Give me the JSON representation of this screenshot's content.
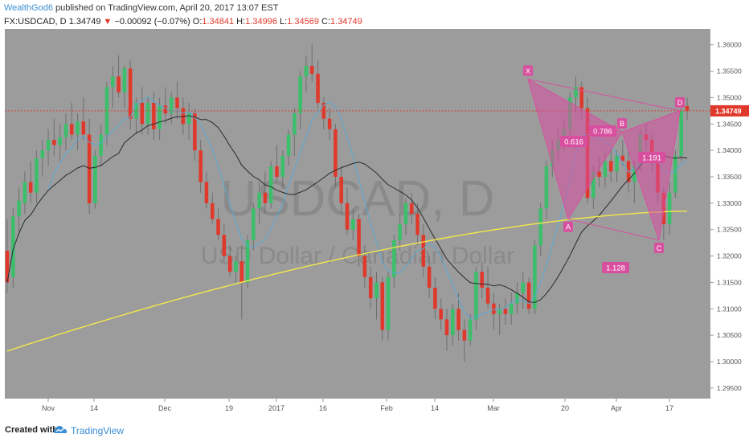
{
  "header": {
    "author": "WealthGod6",
    "published_text": " published on TradingView.com, April 20, 2017 13:07 EST",
    "symbol": "FX:USDCAD, D",
    "last": "1.34749",
    "change_arrow": "▼",
    "change": "−0.00092 (−0.07%)",
    "o_label": "O:",
    "o_value": "1.34841",
    "h_label": "H:",
    "h_value": "1.34996",
    "l_label": "L:",
    "l_value": "1.34569",
    "c_label": "C:",
    "c_value": "1.34749"
  },
  "watermark": {
    "line1": "USDCAD, D",
    "line2": "USD Dollar / Canadian Dollar"
  },
  "footer": {
    "created_with": "Created with",
    "brand": "TradingView"
  },
  "colors": {
    "background": "#9c9c9c",
    "up": "#3bbf6b",
    "down": "#e0392b",
    "ma_fast": "#5aaad6",
    "ma_slow": "#2a2a2a",
    "ma_long": "#f2e84a",
    "pattern": "#d94fa0",
    "price_line": "#e0392b",
    "price_tag": "#e0392b"
  },
  "chart_data": {
    "type": "candlestick",
    "y_ticks": [
      "1.36000",
      "1.35500",
      "1.35000",
      "1.34500",
      "1.34000",
      "1.33500",
      "1.33000",
      "1.32500",
      "1.32000",
      "1.31500",
      "1.31000",
      "1.30500",
      "1.30000",
      "1.29500"
    ],
    "ylim": [
      1.293,
      1.363
    ],
    "x_ticks": [
      "Nov",
      "14",
      "Dec",
      "19",
      "2017",
      "16",
      "Feb",
      "14",
      "Mar",
      "20",
      "Apr",
      "17"
    ],
    "last_price_label": "1.34749",
    "last_price": 1.34749,
    "harmonic_pattern": {
      "points": [
        {
          "label": "X",
          "price": 1.3535
        },
        {
          "label": "A",
          "price": 1.327
        },
        {
          "label": "B",
          "price": 1.3435
        },
        {
          "label": "C",
          "price": 1.323
        },
        {
          "label": "D",
          "price": 1.3475
        }
      ],
      "ratios": [
        "0.616",
        "0.786",
        "1.191",
        "1.128"
      ]
    },
    "series": [
      {
        "name": "",
        "type": "ohlc",
        "values": [
          [
            1.321,
            1.327,
            1.313,
            1.315
          ],
          [
            1.316,
            1.329,
            1.314,
            1.3275
          ],
          [
            1.3275,
            1.333,
            1.324,
            1.3305
          ],
          [
            1.33,
            1.336,
            1.328,
            1.334
          ],
          [
            1.334,
            1.338,
            1.33,
            1.332
          ],
          [
            1.332,
            1.34,
            1.33,
            1.3385
          ],
          [
            1.3385,
            1.342,
            1.335,
            1.34
          ],
          [
            1.34,
            1.344,
            1.337,
            1.342
          ],
          [
            1.342,
            1.346,
            1.339,
            1.341
          ],
          [
            1.341,
            1.345,
            1.338,
            1.3425
          ],
          [
            1.3425,
            1.347,
            1.34,
            1.345
          ],
          [
            1.345,
            1.349,
            1.342,
            1.343
          ],
          [
            1.343,
            1.347,
            1.34,
            1.3455
          ],
          [
            1.3455,
            1.35,
            1.342,
            1.343
          ],
          [
            1.343,
            1.346,
            1.328,
            1.33
          ],
          [
            1.33,
            1.34,
            1.329,
            1.339
          ],
          [
            1.339,
            1.345,
            1.337,
            1.343
          ],
          [
            1.343,
            1.353,
            1.341,
            1.352
          ],
          [
            1.352,
            1.356,
            1.348,
            1.354
          ],
          [
            1.354,
            1.358,
            1.35,
            1.351
          ],
          [
            1.351,
            1.356,
            1.348,
            1.3555
          ],
          [
            1.3555,
            1.357,
            1.344,
            1.346
          ],
          [
            1.346,
            1.35,
            1.343,
            1.349
          ],
          [
            1.349,
            1.352,
            1.343,
            1.345
          ],
          [
            1.345,
            1.35,
            1.343,
            1.349
          ],
          [
            1.349,
            1.351,
            1.342,
            1.344
          ],
          [
            1.344,
            1.35,
            1.342,
            1.3485
          ],
          [
            1.3485,
            1.352,
            1.345,
            1.347
          ],
          [
            1.347,
            1.351,
            1.345,
            1.35
          ],
          [
            1.35,
            1.353,
            1.346,
            1.348
          ],
          [
            1.348,
            1.35,
            1.343,
            1.345
          ],
          [
            1.345,
            1.349,
            1.342,
            1.347
          ],
          [
            1.347,
            1.348,
            1.338,
            1.34
          ],
          [
            1.34,
            1.342,
            1.332,
            1.334
          ],
          [
            1.334,
            1.336,
            1.329,
            1.33
          ],
          [
            1.33,
            1.332,
            1.326,
            1.327
          ],
          [
            1.327,
            1.329,
            1.323,
            1.324
          ],
          [
            1.324,
            1.326,
            1.319,
            1.32
          ],
          [
            1.32,
            1.322,
            1.316,
            1.317
          ],
          [
            1.317,
            1.32,
            1.315,
            1.319
          ],
          [
            1.319,
            1.322,
            1.308,
            1.315
          ],
          [
            1.315,
            1.324,
            1.314,
            1.323
          ],
          [
            1.323,
            1.33,
            1.321,
            1.329
          ],
          [
            1.329,
            1.334,
            1.326,
            1.332
          ],
          [
            1.332,
            1.336,
            1.328,
            1.33
          ],
          [
            1.33,
            1.338,
            1.329,
            1.337
          ],
          [
            1.337,
            1.341,
            1.334,
            1.335
          ],
          [
            1.335,
            1.34,
            1.333,
            1.339
          ],
          [
            1.339,
            1.344,
            1.337,
            1.343
          ],
          [
            1.343,
            1.348,
            1.339,
            1.347
          ],
          [
            1.347,
            1.355,
            1.344,
            1.354
          ],
          [
            1.354,
            1.358,
            1.351,
            1.356
          ],
          [
            1.356,
            1.36,
            1.353,
            1.3545
          ],
          [
            1.3545,
            1.357,
            1.348,
            1.349
          ],
          [
            1.349,
            1.35,
            1.344,
            1.346
          ],
          [
            1.346,
            1.348,
            1.342,
            1.344
          ],
          [
            1.344,
            1.345,
            1.333,
            1.335
          ],
          [
            1.335,
            1.337,
            1.328,
            1.33
          ],
          [
            1.33,
            1.333,
            1.324,
            1.325
          ],
          [
            1.325,
            1.329,
            1.323,
            1.327
          ],
          [
            1.327,
            1.328,
            1.318,
            1.32
          ],
          [
            1.32,
            1.322,
            1.314,
            1.316
          ],
          [
            1.316,
            1.318,
            1.31,
            1.312
          ],
          [
            1.312,
            1.317,
            1.308,
            1.315
          ],
          [
            1.315,
            1.316,
            1.304,
            1.306
          ],
          [
            1.306,
            1.317,
            1.304,
            1.316
          ],
          [
            1.316,
            1.324,
            1.314,
            1.323
          ],
          [
            1.323,
            1.328,
            1.321,
            1.326
          ],
          [
            1.326,
            1.331,
            1.324,
            1.33
          ],
          [
            1.33,
            1.332,
            1.326,
            1.328
          ],
          [
            1.328,
            1.33,
            1.322,
            1.324
          ],
          [
            1.324,
            1.326,
            1.316,
            1.318
          ],
          [
            1.318,
            1.32,
            1.312,
            1.314
          ],
          [
            1.314,
            1.316,
            1.308,
            1.31
          ],
          [
            1.31,
            1.312,
            1.306,
            1.308
          ],
          [
            1.308,
            1.31,
            1.302,
            1.305
          ],
          [
            1.305,
            1.311,
            1.303,
            1.31
          ],
          [
            1.31,
            1.313,
            1.304,
            1.306
          ],
          [
            1.306,
            1.308,
            1.3,
            1.304
          ],
          [
            1.304,
            1.309,
            1.303,
            1.308
          ],
          [
            1.308,
            1.318,
            1.306,
            1.317
          ],
          [
            1.317,
            1.319,
            1.312,
            1.314
          ],
          [
            1.314,
            1.318,
            1.31,
            1.311
          ],
          [
            1.311,
            1.313,
            1.306,
            1.309
          ],
          [
            1.309,
            1.311,
            1.305,
            1.31
          ],
          [
            1.31,
            1.312,
            1.307,
            1.309
          ],
          [
            1.309,
            1.313,
            1.307,
            1.311
          ],
          [
            1.311,
            1.315,
            1.309,
            1.313
          ],
          [
            1.313,
            1.317,
            1.31,
            1.315
          ],
          [
            1.315,
            1.316,
            1.309,
            1.31
          ],
          [
            1.31,
            1.323,
            1.309,
            1.322
          ],
          [
            1.322,
            1.33,
            1.32,
            1.329
          ],
          [
            1.329,
            1.338,
            1.327,
            1.337
          ],
          [
            1.337,
            1.342,
            1.335,
            1.34
          ],
          [
            1.34,
            1.344,
            1.338,
            1.342
          ],
          [
            1.342,
            1.346,
            1.34,
            1.344
          ],
          [
            1.344,
            1.351,
            1.342,
            1.35
          ],
          [
            1.35,
            1.354,
            1.347,
            1.352
          ],
          [
            1.352,
            1.353,
            1.346,
            1.348
          ],
          [
            1.348,
            1.35,
            1.33,
            1.331
          ],
          [
            1.331,
            1.337,
            1.329,
            1.336
          ],
          [
            1.336,
            1.339,
            1.333,
            1.335
          ],
          [
            1.335,
            1.34,
            1.333,
            1.338
          ],
          [
            1.338,
            1.34,
            1.334,
            1.336
          ],
          [
            1.336,
            1.34,
            1.334,
            1.339
          ],
          [
            1.339,
            1.342,
            1.337,
            1.338
          ],
          [
            1.338,
            1.34,
            1.332,
            1.334
          ],
          [
            1.334,
            1.338,
            1.33,
            1.337
          ],
          [
            1.337,
            1.344,
            1.336,
            1.343
          ],
          [
            1.343,
            1.345,
            1.34,
            1.342
          ],
          [
            1.342,
            1.343,
            1.336,
            1.338
          ],
          [
            1.338,
            1.339,
            1.33,
            1.332
          ],
          [
            1.332,
            1.333,
            1.323,
            1.326
          ],
          [
            1.326,
            1.334,
            1.324,
            1.332
          ],
          [
            1.332,
            1.34,
            1.331,
            1.339
          ],
          [
            1.339,
            1.348,
            1.338,
            1.3475
          ],
          [
            1.3484,
            1.35,
            1.3457,
            1.3475
          ]
        ]
      }
    ]
  }
}
